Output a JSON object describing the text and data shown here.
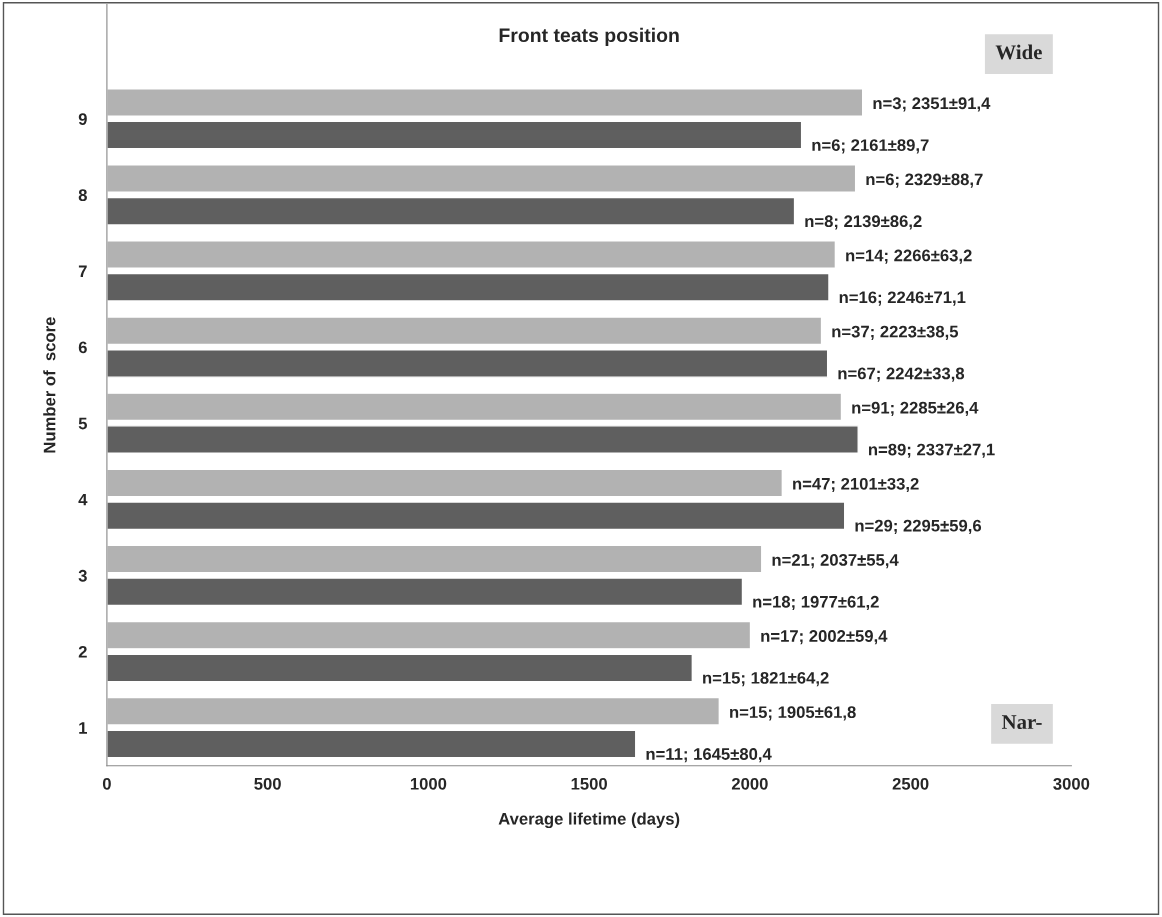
{
  "chart_data": {
    "type": "bar",
    "orientation": "horizontal",
    "title": "Front teats position",
    "xlabel": "Average lifetime (days)",
    "ylabel": "Number of  score",
    "categories": [
      "9",
      "8",
      "7",
      "6",
      "5",
      "4",
      "3",
      "2",
      "1"
    ],
    "series": [
      {
        "color": "#b2b2b2",
        "values": [
          2351,
          2329,
          2266,
          2223,
          2285,
          2101,
          2037,
          2002,
          1905
        ],
        "value_labels": [
          "n=3; 2351±91,4",
          "n=6; 2329±88,7",
          "n=14; 2266±63,2",
          "n=37; 2223±38,5",
          "n=91; 2285±26,4",
          "n=47; 2101±33,2",
          "n=21; 2037±55,4",
          "n=17; 2002±59,4",
          "n=15; 1905±61,8"
        ]
      },
      {
        "color": "#5f5f5f",
        "values": [
          2161,
          2139,
          2246,
          2242,
          2337,
          2295,
          1977,
          1821,
          1645
        ],
        "value_labels": [
          "n=6; 2161±89,7",
          "n=8; 2139±86,2",
          "n=16; 2246±71,1",
          "n=67; 2242±33,8",
          "n=89; 2337±27,1",
          "n=29; 2295±59,6",
          "n=18; 1977±61,2",
          "n=15; 1821±64,2",
          "n=11; 1645±80,4"
        ]
      }
    ],
    "xlim": [
      0,
      3000
    ],
    "xticks": [
      0,
      500,
      1000,
      1500,
      2000,
      2500,
      3000
    ],
    "grid": false,
    "legend": false,
    "annotations": [
      "Wide",
      "Nar-"
    ]
  }
}
